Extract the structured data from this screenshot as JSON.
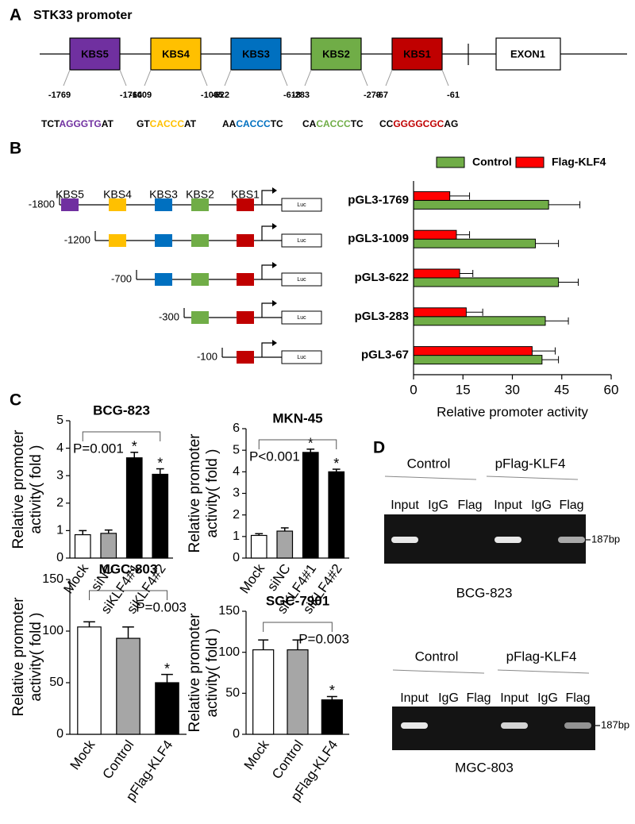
{
  "panel_a": {
    "letter": "A",
    "title": "STK33 promoter",
    "exon": "EXON1",
    "sites": [
      {
        "name": "KBS5",
        "color": "#7030a0",
        "start": "-1769",
        "end": "-1764",
        "sequence": [
          "TCT",
          "AGGGTG",
          "AT"
        ]
      },
      {
        "name": "KBS4",
        "color": "#ffc000",
        "start": "-1009",
        "end": "-1005",
        "sequence": [
          "GT",
          "CACCC",
          "AT"
        ]
      },
      {
        "name": "KBS3",
        "color": "#0070c0",
        "start": "-622",
        "end": "-618",
        "sequence": [
          "AA",
          "CACCC",
          "TC"
        ]
      },
      {
        "name": "KBS2",
        "color": "#70ad47",
        "start": "-283",
        "end": "-279",
        "sequence": [
          "CA",
          "CACCC",
          "TC"
        ]
      },
      {
        "name": "KBS1",
        "color": "#c00000",
        "start": "-67",
        "end": "-61",
        "sequence": [
          "CC",
          "GGGGCGC",
          "AG"
        ]
      }
    ]
  },
  "panel_b": {
    "letter": "B",
    "sites": [
      "KBS5",
      "KBS4",
      "KBS3",
      "KBS2",
      "KBS1"
    ],
    "constructs": [
      "-1800",
      "-1200",
      "-700",
      "-300",
      "-100"
    ],
    "reporter": "Luc"
  },
  "panel_c": {
    "letter": "C"
  },
  "panel_d": {
    "letter": "D",
    "gels": [
      {
        "groups": [
          "Control",
          "pFlag-KLF4"
        ],
        "lanes": [
          "Input",
          "IgG",
          "Flag",
          "Input",
          "IgG",
          "Flag"
        ],
        "marker": "187bp",
        "cell_line": "BCG-823"
      },
      {
        "groups": [
          "Control",
          "pFlag-KLF4"
        ],
        "lanes": [
          "Input",
          "IgG",
          "Flag",
          "Input",
          "IgG",
          "Flag"
        ],
        "marker": "187bp",
        "cell_line": "MGC-803"
      }
    ]
  },
  "chart_data": [
    {
      "type": "hbar",
      "xlabel": "Relative promoter activity",
      "categories": [
        "pGL3-1769",
        "pGL3-1009",
        "pGL3-622",
        "pGL3-283",
        "pGL3-67"
      ],
      "series": [
        {
          "name": "Control",
          "color": "#70ad47",
          "values": [
            41,
            37,
            44,
            40,
            39
          ],
          "errors": [
            9.5,
            7,
            6,
            7,
            5
          ]
        },
        {
          "name": "Flag-KLF4",
          "color": "#ff0000",
          "values": [
            11,
            13,
            14,
            16,
            36
          ],
          "errors": [
            6,
            4,
            4,
            5,
            7
          ]
        }
      ],
      "xlim": [
        0,
        60
      ],
      "xticks": [
        0,
        15,
        30,
        45,
        60
      ],
      "legend": "top"
    },
    {
      "type": "bar",
      "title": "BCG-823",
      "ylabel": [
        "Relative promoter",
        "activity( fold )"
      ],
      "categories": [
        "Mock",
        "siNC",
        "siKLF4#1",
        "siKLF4#2"
      ],
      "values": [
        0.85,
        0.9,
        3.65,
        3.05
      ],
      "errors": [
        0.15,
        0.12,
        0.2,
        0.2
      ],
      "colors": [
        "#ffffff",
        "#a6a6a6",
        "#000000",
        "#000000"
      ],
      "ylim": [
        0,
        5
      ],
      "yticks": [
        0,
        1,
        2,
        3,
        4,
        5
      ],
      "p_value": "P=0.001",
      "significance": [
        null,
        null,
        "*",
        "*"
      ]
    },
    {
      "type": "bar",
      "title": "MKN-45",
      "ylabel": [
        "Relative promoter",
        "activity( fold )"
      ],
      "categories": [
        "Mock",
        "siNC",
        "siKLF4#1",
        "siKLF4#2"
      ],
      "values": [
        1.05,
        1.25,
        4.9,
        4.0
      ],
      "errors": [
        0.08,
        0.15,
        0.15,
        0.12
      ],
      "colors": [
        "#ffffff",
        "#a6a6a6",
        "#000000",
        "#000000"
      ],
      "ylim": [
        0,
        6
      ],
      "yticks": [
        0,
        1,
        2,
        3,
        4,
        5,
        6
      ],
      "p_value": "P<0.001",
      "significance": [
        null,
        null,
        "*",
        "*"
      ]
    },
    {
      "type": "bar",
      "title": "MGC-803",
      "ylabel": [
        "Relative promoter",
        "activity( fold )"
      ],
      "categories": [
        "Mock",
        "Control",
        "pFlag-KLF4"
      ],
      "values": [
        104,
        93,
        50
      ],
      "errors": [
        5,
        11,
        8
      ],
      "colors": [
        "#ffffff",
        "#a6a6a6",
        "#000000"
      ],
      "ylim": [
        0,
        150
      ],
      "yticks": [
        0,
        50,
        100,
        150
      ],
      "p_value": "P=0.003",
      "significance": [
        null,
        null,
        "*"
      ]
    },
    {
      "type": "bar",
      "title": "SGC-7901",
      "ylabel": [
        "Relative promoter",
        "activity( fold )"
      ],
      "categories": [
        "Mock",
        "Control",
        "pFlag-KLF4"
      ],
      "values": [
        103,
        103,
        42
      ],
      "errors": [
        12,
        12,
        4
      ],
      "colors": [
        "#ffffff",
        "#a6a6a6",
        "#000000"
      ],
      "ylim": [
        0,
        150
      ],
      "yticks": [
        0,
        50,
        100,
        150
      ],
      "p_value": "P=0.003",
      "significance": [
        null,
        null,
        "*"
      ]
    }
  ]
}
